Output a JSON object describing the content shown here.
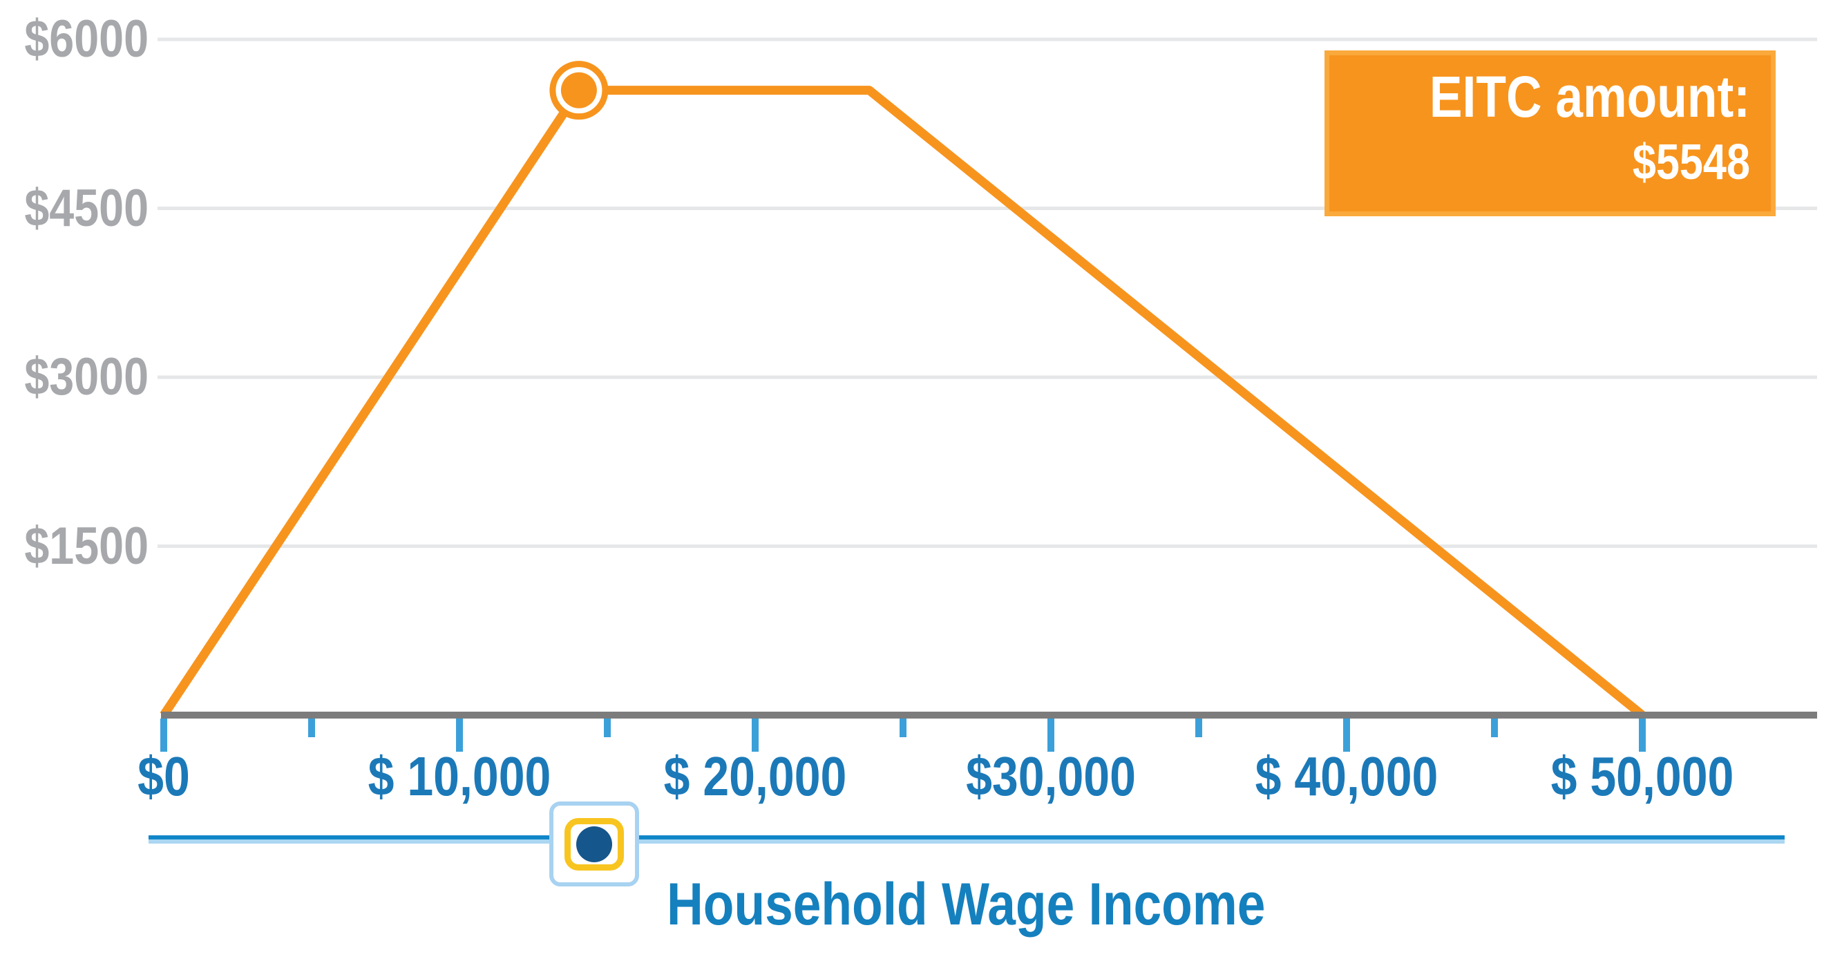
{
  "badge": {
    "label": "EITC amount:",
    "value": "$5548"
  },
  "y_axis": {
    "ticks": [
      {
        "label": "$6000",
        "value": 6000
      },
      {
        "label": "$4500",
        "value": 4500
      },
      {
        "label": "$3000",
        "value": 3000
      },
      {
        "label": "$1500",
        "value": 1500
      }
    ]
  },
  "x_axis": {
    "ticks": [
      {
        "label": "$0",
        "value": 0
      },
      {
        "label": "$ 10,000",
        "value": 10000
      },
      {
        "label": "$ 20,000",
        "value": 20000
      },
      {
        "label": "$30,000",
        "value": 30000
      },
      {
        "label": "$ 40,000",
        "value": 40000
      },
      {
        "label": "$ 50,000",
        "value": 50000
      }
    ],
    "minor_tick_values": [
      5000,
      15000,
      25000,
      35000,
      45000
    ]
  },
  "slider": {
    "axis_title": "Household Wage Income",
    "thumb_income_position": 14040
  },
  "colors": {
    "line_orange": "#F7941E",
    "badge_orange": "#F7941E",
    "badge_border": "#FAA93C",
    "gridline_gray": "#E6E7E8",
    "axis_gray": "#7C7C7C",
    "tick_blue": "#3BA0D9",
    "label_blue": "#1B79B8",
    "ylabel_gray": "#A6A8AB",
    "track_blue": "#1187CA",
    "thumb_navy": "#15568C",
    "thumb_yellow": "#F8C41F",
    "focus_light_blue": "#A8D2F1"
  },
  "chart_data": {
    "type": "line",
    "title": "",
    "xlabel": "Household Wage Income",
    "ylabel": "EITC amount",
    "xlim": [
      0,
      55900
    ],
    "ylim": [
      0,
      6000
    ],
    "x_ticks": [
      0,
      10000,
      20000,
      30000,
      40000,
      50000
    ],
    "x_minor_ticks": [
      5000,
      15000,
      25000,
      35000,
      45000
    ],
    "y_ticks": [
      1500,
      3000,
      4500,
      6000
    ],
    "grid": true,
    "legend": "none",
    "series": [
      {
        "name": "EITC amount",
        "color": "#F7941E",
        "points": [
          [
            0,
            0
          ],
          [
            14040,
            5548
          ],
          [
            23860,
            5548
          ],
          [
            50000,
            0
          ]
        ]
      }
    ],
    "marker_point": [
      14040,
      5548
    ],
    "annotation": "EITC amount: $5548"
  }
}
